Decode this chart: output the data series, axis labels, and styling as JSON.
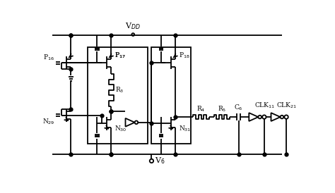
{
  "bg_color": "#ffffff",
  "line_color": "#000000",
  "lw": 1.3,
  "figsize": [
    4.74,
    2.74
  ],
  "dpi": 100,
  "labels": {
    "VDD": "V$_{DD}$",
    "V6": "V$_6$",
    "P16": "P$_{16}$",
    "P17": "P$_{17}$",
    "P18": "P$_{18}$",
    "N29": "N$_{29}$",
    "N30": "N$_{30}$",
    "N31": "N$_{31}$",
    "R3": "R$_3$",
    "R4": "R$_4$",
    "R5": "R$_5$",
    "C6": "C$_6$",
    "CLK1": "CLK$_{11}$",
    "CLK2": "CLK$_{21}$"
  }
}
